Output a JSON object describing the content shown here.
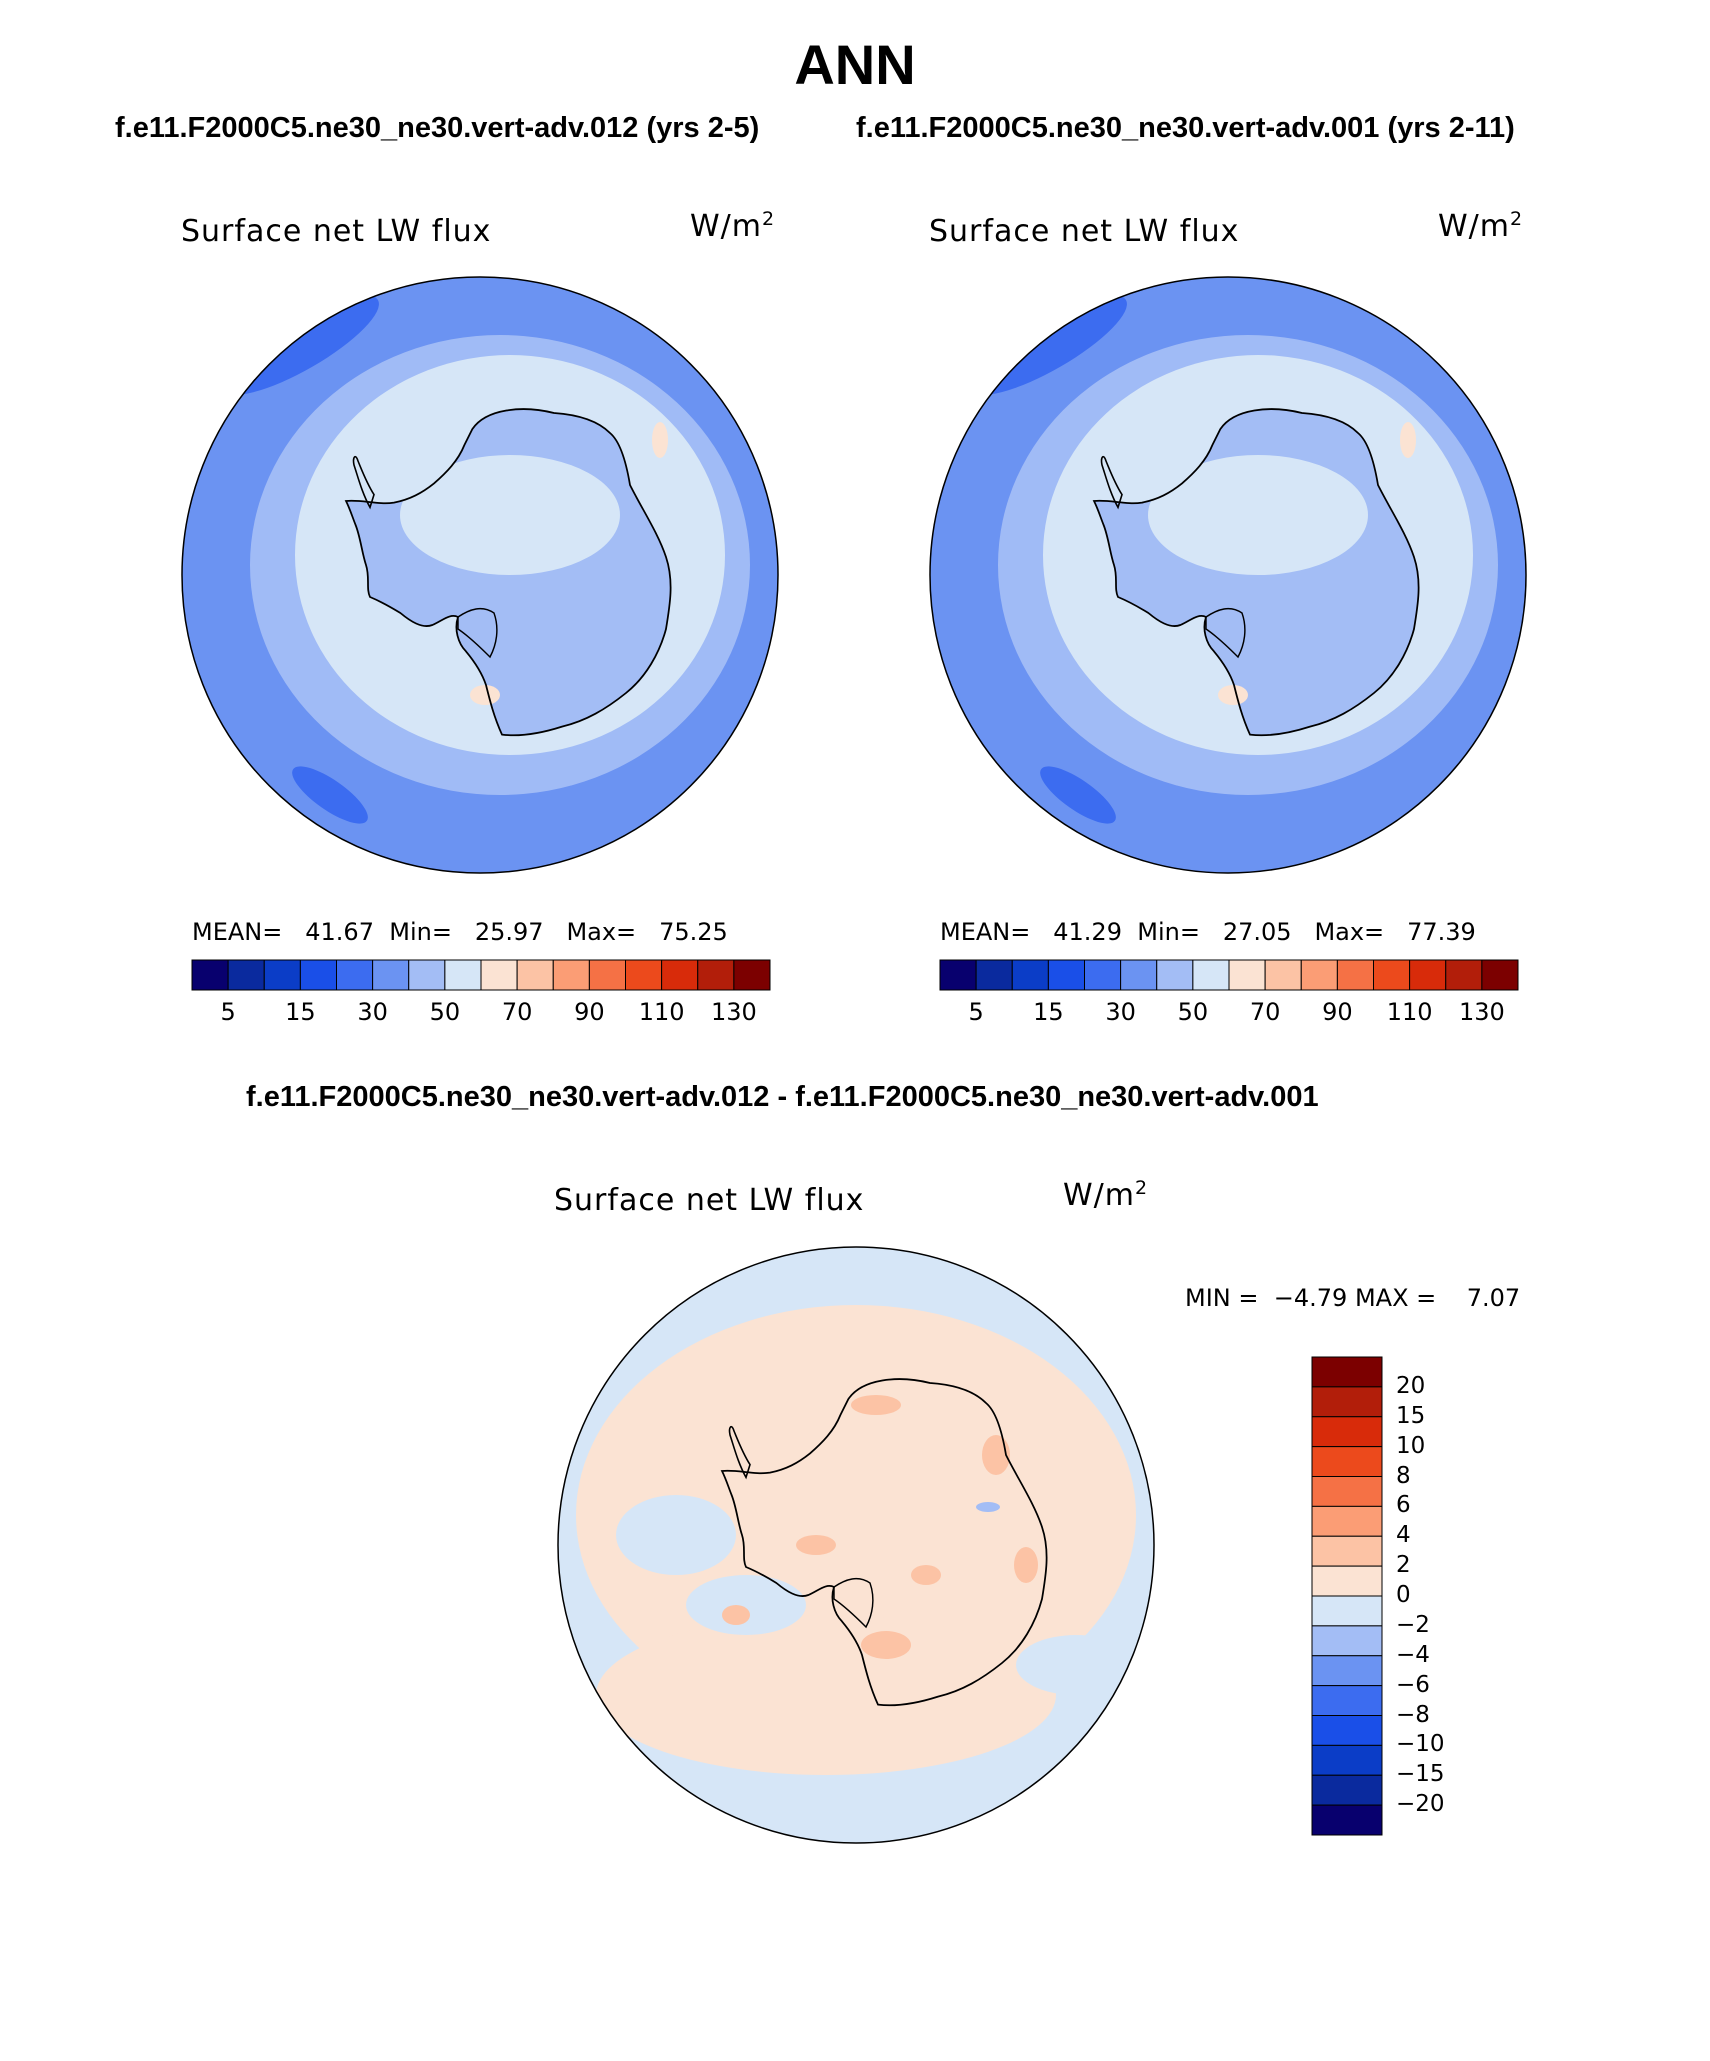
{
  "page": {
    "title": "ANN",
    "subtitle_left": "f.e11.F2000C5.ne30_ne30.vert-adv.012 (yrs 2-5)",
    "subtitle_right": "f.e11.F2000C5.ne30_ne30.vert-adv.001 (yrs 2-11)",
    "diff_title": "f.e11.F2000C5.ne30_ne30.vert-adv.012 - f.e11.F2000C5.ne30_ne30.vert-adv.001"
  },
  "panels": [
    {
      "label": "Surface net LW flux",
      "units_base": "W/m",
      "units_exp": "2",
      "mean_label": "MEAN=",
      "mean": "41.67",
      "min_label": "Min=",
      "min": "25.97",
      "max_label": "Max=",
      "max": "75.25"
    },
    {
      "label": "Surface net LW flux",
      "units_base": "W/m",
      "units_exp": "2",
      "mean_label": "MEAN=",
      "mean": "41.29",
      "min_label": "Min=",
      "min": "27.05",
      "max_label": "Max=",
      "max": "77.39"
    }
  ],
  "diff_panel": {
    "label": "Surface net LW flux",
    "units_base": "W/m",
    "units_exp": "2",
    "min_label": "MIN =",
    "min": "−4.79",
    "max_label": "MAX =",
    "max": "7.07"
  },
  "colorbar": {
    "colors": [
      "#08006e",
      "#0a2a9e",
      "#0b3dc7",
      "#1a4fe8",
      "#3c6cf0",
      "#6b93f2",
      "#a3bdf5",
      "#d6e6f7",
      "#fbe3d3",
      "#fcc3a5",
      "#fb9d75",
      "#f57145",
      "#ec4a1c",
      "#d82b0a",
      "#b21e0a",
      "#7c0000"
    ],
    "ticks": [
      "5",
      "15",
      "30",
      "50",
      "70",
      "90",
      "110",
      "130"
    ]
  },
  "diff_colorbar": {
    "colors": [
      "#08006e",
      "#0a2a9e",
      "#0b3dc7",
      "#1a4fe8",
      "#3c6cf0",
      "#6b93f2",
      "#a3bdf5",
      "#d6e6f7",
      "#fbe3d3",
      "#fcc3a5",
      "#fb9d75",
      "#f57145",
      "#ec4a1c",
      "#d82b0a",
      "#b21e0a",
      "#7c0000"
    ],
    "labels": [
      "20",
      "15",
      "10",
      "8",
      "6",
      "4",
      "2",
      "0",
      "−2",
      "−4",
      "−6",
      "−8",
      "−10",
      "−15",
      "−20"
    ]
  },
  "map_colors": {
    "ocean": "#6b93f2",
    "ocean_dark": "#3c6cf0",
    "ring": "#a3bdf5",
    "ice": "#d6e6f7",
    "warm": "#fbe3d3",
    "diff_base": "#fbe3d3",
    "diff_neg": "#d6e6f7",
    "diff_pos": "#fcc3a5",
    "diff_neg2": "#a3bdf5"
  }
}
